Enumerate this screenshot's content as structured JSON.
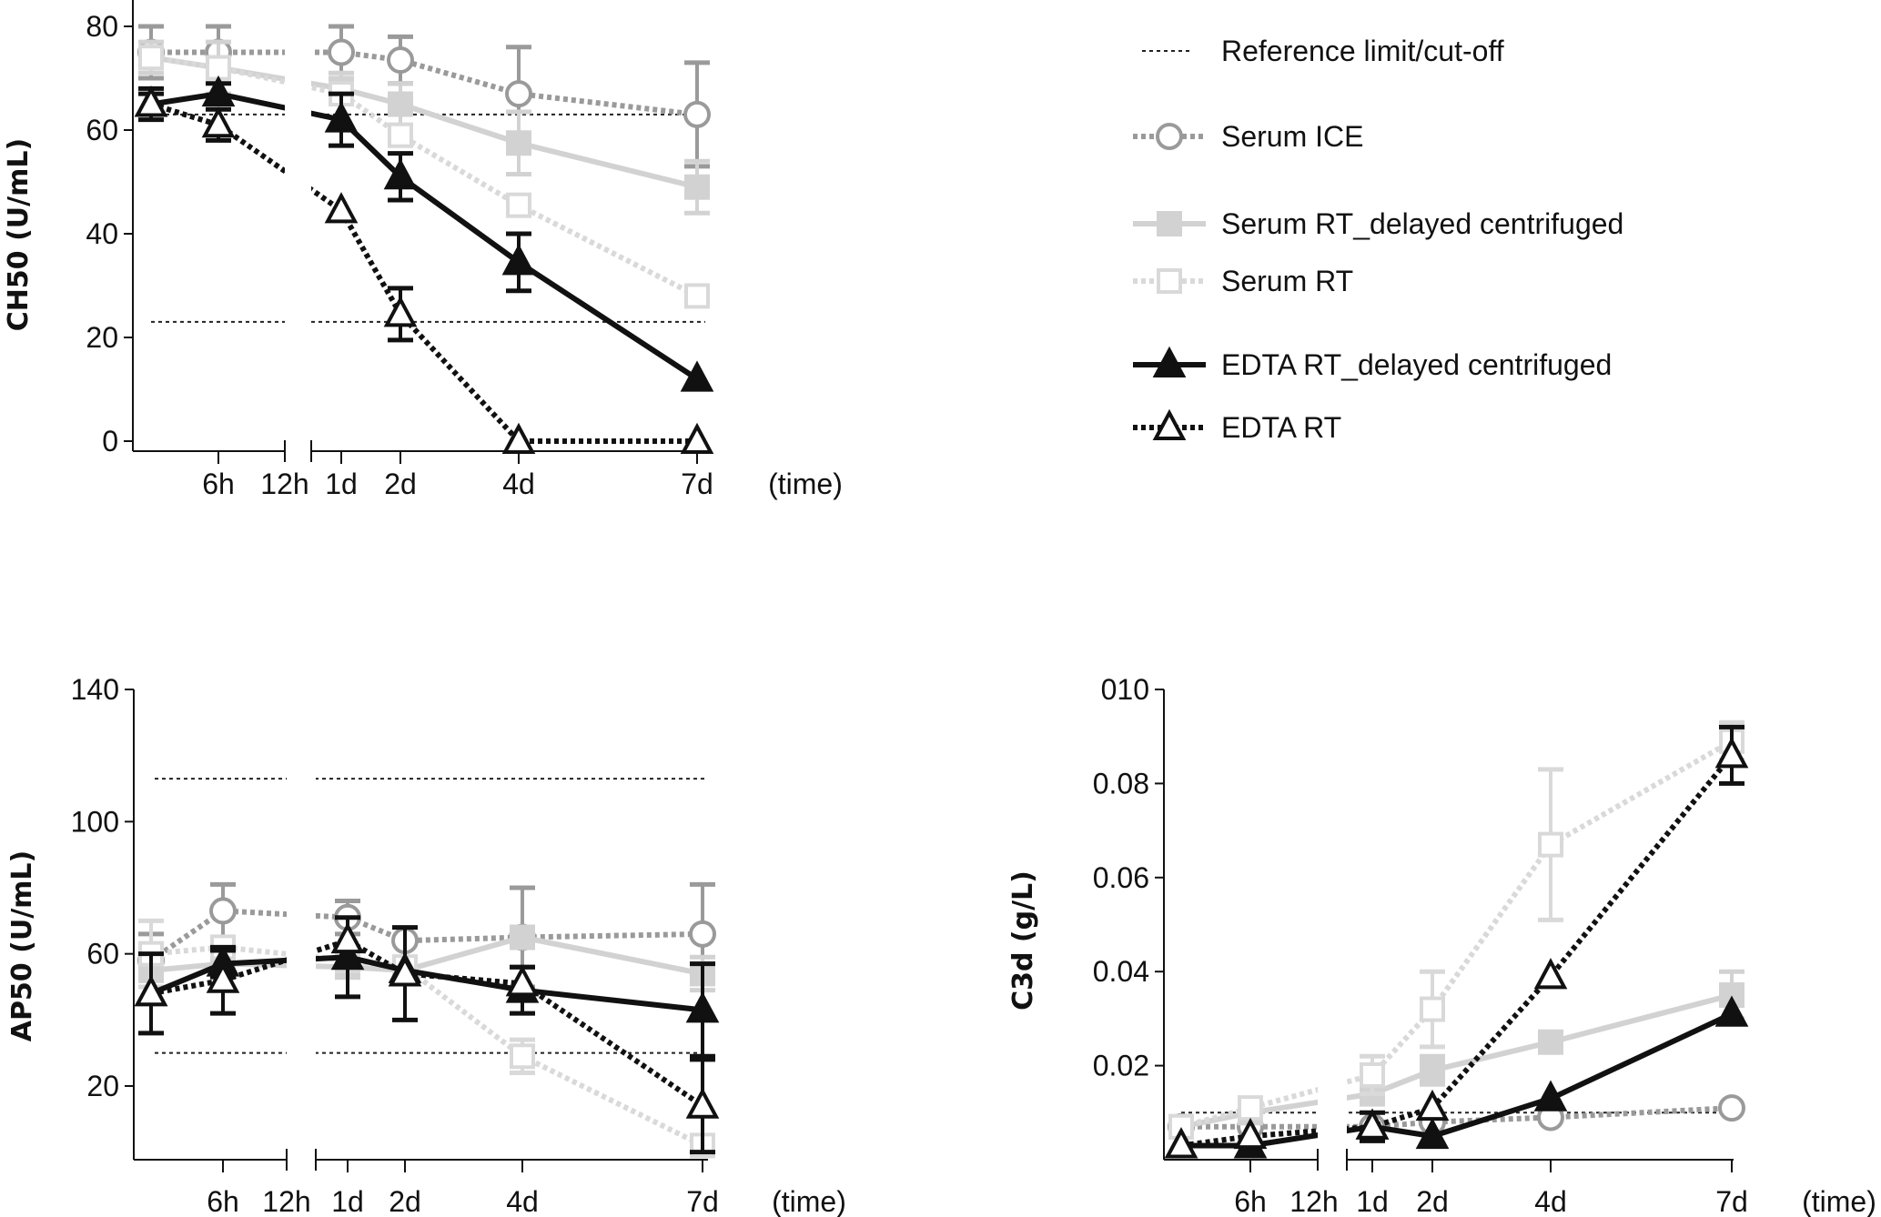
{
  "series_styles": [
    {
      "name": "Serum ICE",
      "color": "#9a9a9a",
      "dash": "dotted",
      "marker": "circle",
      "filled": false
    },
    {
      "name": "Serum RT_delayed centrifuged",
      "color": "#d2d2d2",
      "dash": "solid",
      "marker": "square",
      "filled": true
    },
    {
      "name": "Serum RT",
      "color": "#d9d9d9",
      "dash": "dotted",
      "marker": "square",
      "filled": false
    },
    {
      "name": "EDTA RT_delayed centrifuged",
      "color": "#111111",
      "dash": "solid",
      "marker": "triangle",
      "filled": true
    },
    {
      "name": "EDTA RT",
      "color": "#111111",
      "dash": "dotted",
      "marker": "triangle",
      "filled": false
    }
  ],
  "legend": {
    "reference_label": "Reference limit/cut-off",
    "entries": [
      "Serum ICE",
      "Serum RT_delayed centrifuged",
      "Serum RT",
      "EDTA RT_delayed centrifuged",
      "EDTA RT"
    ]
  },
  "chart_data": [
    {
      "type": "line",
      "ylabel": "CH50 (U/mL)",
      "xlabel": "(time)",
      "x_hours": [
        0,
        6,
        24,
        48,
        96,
        168
      ],
      "x_tick_labels": [
        "6h",
        "12h",
        "1d",
        "2d",
        "4d",
        "7d"
      ],
      "axis_break": "between 12h and 1d",
      "yticks": [
        "0",
        "20",
        "40",
        "60",
        "80"
      ],
      "ytick_values": [
        0,
        20,
        40,
        60,
        80
      ],
      "ylim": [
        -3,
        80
      ],
      "reference_lines": [
        63,
        23
      ],
      "series": [
        {
          "name": "Serum ICE",
          "values": [
            75,
            75,
            75,
            73.5,
            67,
            63
          ],
          "errors": [
            5,
            5,
            5,
            4.5,
            9,
            10
          ]
        },
        {
          "name": "Serum RT_delayed centrifuged",
          "values": [
            74,
            72,
            68,
            65,
            57.5,
            49
          ],
          "errors": [
            3,
            5,
            3,
            4,
            6,
            5
          ]
        },
        {
          "name": "Serum RT",
          "values": [
            74,
            72,
            67,
            59,
            45.5,
            28
          ],
          "errors": [
            0,
            0,
            0,
            0,
            0,
            0
          ]
        },
        {
          "name": "EDTA RT_delayed centrifuged",
          "values": [
            65,
            67,
            62,
            51,
            34.5,
            12
          ],
          "errors": [
            3,
            2,
            5,
            4.5,
            5.5,
            0
          ]
        },
        {
          "name": "EDTA RT",
          "values": [
            65,
            61,
            44.5,
            24.5,
            0,
            0
          ],
          "errors": [
            2,
            3,
            0,
            5,
            0,
            0
          ]
        }
      ]
    },
    {
      "type": "line",
      "ylabel": "AP50 (U/mL)",
      "xlabel": "(time)",
      "x_hours": [
        0,
        6,
        24,
        48,
        96,
        168
      ],
      "x_tick_labels": [
        "6h",
        "12h",
        "1d",
        "2d",
        "4d",
        "7d"
      ],
      "axis_break": "between 12h and 1d",
      "yticks": [
        "20",
        "60",
        "100",
        "140"
      ],
      "ytick_values": [
        20,
        60,
        100,
        140
      ],
      "ylim": [
        -2,
        140
      ],
      "reference_lines": [
        113,
        30
      ],
      "series": [
        {
          "name": "Serum ICE",
          "values": [
            58,
            73,
            71,
            64,
            65,
            66
          ],
          "errors": [
            8,
            8,
            5,
            0,
            15,
            15
          ]
        },
        {
          "name": "Serum RT_delayed centrifuged",
          "values": [
            55,
            57,
            56,
            55,
            65,
            54
          ],
          "errors": [
            5,
            4,
            0,
            0,
            0,
            5
          ]
        },
        {
          "name": "Serum RT",
          "values": [
            60,
            62,
            58,
            56,
            29,
            2
          ],
          "errors": [
            10,
            0,
            0,
            0,
            5,
            0
          ]
        },
        {
          "name": "EDTA RT_delayed centrifuged",
          "values": [
            48,
            57,
            59,
            55,
            49,
            43
          ],
          "errors": [
            12,
            4,
            12,
            0,
            7,
            14
          ]
        },
        {
          "name": "EDTA RT",
          "values": [
            48,
            52,
            64,
            54,
            51,
            14
          ],
          "errors": [
            0,
            10,
            0,
            14,
            5,
            14
          ]
        }
      ]
    },
    {
      "type": "line",
      "ylabel": "C3d (g/L)",
      "xlabel": "(time)",
      "x_hours": [
        0,
        6,
        24,
        48,
        96,
        168
      ],
      "x_tick_labels": [
        "6h",
        "12h",
        "1d",
        "2d",
        "4d",
        "7d"
      ],
      "axis_break": "between 12h and 1d",
      "yticks": [
        "0.02",
        "0.04",
        "0.06",
        "0.08",
        "010"
      ],
      "ytick_values": [
        0.02,
        0.04,
        0.06,
        0.08,
        0.1
      ],
      "ylim": [
        0,
        0.1
      ],
      "reference_lines": [
        0.01
      ],
      "series": [
        {
          "name": "Serum ICE",
          "values": [
            0.007,
            0.007,
            0.007,
            0.008,
            0.009,
            0.011
          ],
          "errors": [
            0,
            0,
            0,
            0,
            0,
            0
          ]
        },
        {
          "name": "Serum RT_delayed centrifuged",
          "values": [
            0.007,
            0.01,
            0.014,
            0.019,
            0.025,
            0.035
          ],
          "errors": [
            0,
            0,
            0,
            0.003,
            0,
            0.005
          ]
        },
        {
          "name": "Serum RT",
          "values": [
            0.007,
            0.011,
            0.018,
            0.032,
            0.067,
            0.089
          ],
          "errors": [
            0,
            0,
            0.004,
            0.008,
            0.016,
            0.004
          ]
        },
        {
          "name": "EDTA RT_delayed centrifuged",
          "values": [
            0.003,
            0.003,
            0.007,
            0.005,
            0.013,
            0.031
          ],
          "errors": [
            0,
            0,
            0.003,
            0,
            0,
            0
          ]
        },
        {
          "name": "EDTA RT",
          "values": [
            0.003,
            0.005,
            0.007,
            0.011,
            0.039,
            0.086
          ],
          "errors": [
            0,
            0,
            0,
            0,
            0,
            0.006
          ]
        }
      ]
    }
  ]
}
